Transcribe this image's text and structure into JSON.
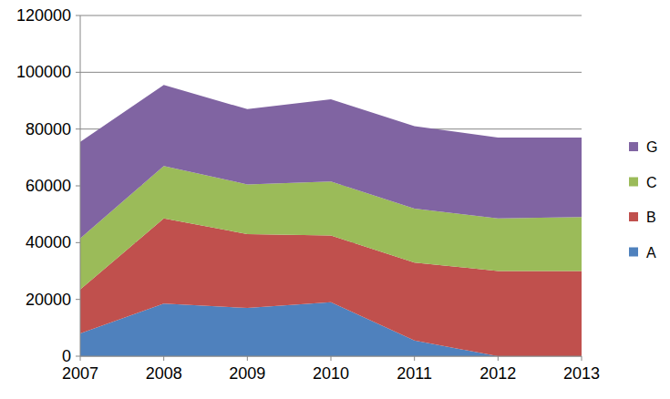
{
  "chart_data": {
    "type": "area",
    "stacked": true,
    "grid": true,
    "legend": "right",
    "categories": [
      "2007",
      "2008",
      "2009",
      "2010",
      "2011",
      "2012",
      "2013"
    ],
    "series": [
      {
        "name": "A",
        "color": "#4f81bd",
        "values": [
          8000,
          18500,
          17000,
          19000,
          5500,
          0,
          0
        ]
      },
      {
        "name": "B",
        "color": "#c0504d",
        "values": [
          15500,
          30000,
          26000,
          23500,
          27500,
          30000,
          30000
        ]
      },
      {
        "name": "C",
        "color": "#9bbb59",
        "values": [
          18000,
          18500,
          17500,
          19000,
          19000,
          18500,
          19000
        ]
      },
      {
        "name": "G",
        "color": "#8064a2",
        "values": [
          34000,
          28500,
          26500,
          29000,
          29000,
          28500,
          28000
        ]
      }
    ],
    "ylim": [
      0,
      120000
    ],
    "yticks": [
      0,
      20000,
      40000,
      60000,
      80000,
      100000,
      120000
    ]
  }
}
